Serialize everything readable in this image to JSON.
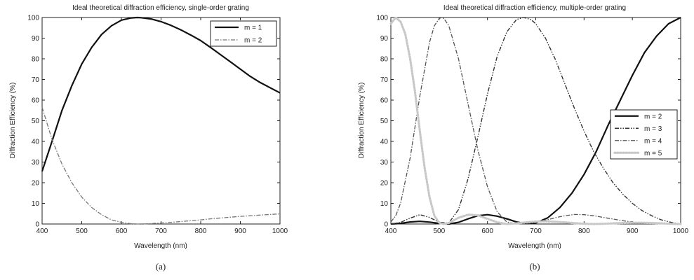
{
  "chart_data": [
    {
      "type": "line",
      "title": "Ideal theoretical diffraction efficiency, single-order grating",
      "xlabel": "Wavelength (nm)",
      "ylabel": "Diffraction Efficiency (%)",
      "xlim": [
        400,
        1000
      ],
      "ylim": [
        0,
        100
      ],
      "xticks": [
        400,
        500,
        600,
        700,
        800,
        900,
        1000
      ],
      "yticks": [
        0,
        10,
        20,
        30,
        40,
        50,
        60,
        70,
        80,
        90,
        100
      ],
      "grid": false,
      "legend_position": "top-right",
      "caption": "(a)",
      "series": [
        {
          "name": "m = 1",
          "color": "#111111",
          "style": "solid",
          "x": [
            400,
            425,
            450,
            475,
            500,
            525,
            550,
            575,
            600,
            625,
            640,
            650,
            675,
            700,
            725,
            750,
            775,
            800,
            825,
            850,
            875,
            900,
            925,
            950,
            975,
            1000
          ],
          "y": [
            25.5,
            40,
            55,
            67,
            77.5,
            85.5,
            91.8,
            96,
            98.7,
            99.8,
            100,
            99.9,
            99.3,
            98,
            96.2,
            94,
            91.5,
            88.8,
            85.5,
            82,
            78.5,
            75,
            71.5,
            68.5,
            66,
            63.5
          ]
        },
        {
          "name": "m = 2",
          "color": "#777777",
          "style": "dash-dot",
          "x": [
            400,
            425,
            450,
            475,
            500,
            525,
            550,
            575,
            600,
            625,
            640,
            650,
            675,
            700,
            725,
            750,
            775,
            800,
            825,
            850,
            875,
            900,
            925,
            950,
            975,
            1000
          ],
          "y": [
            56.5,
            41,
            29,
            20,
            13,
            8,
            4.5,
            2,
            0.8,
            0.1,
            0,
            0,
            0.2,
            0.5,
            0.8,
            1.2,
            1.6,
            2,
            2.5,
            2.9,
            3.3,
            3.7,
            4,
            4.3,
            4.6,
            4.9
          ]
        }
      ]
    },
    {
      "type": "line",
      "title": "Ideal theoretical diffraction efficiency, multiple-order grating",
      "xlabel": "Wavelength (nm)",
      "ylabel": "Diffraction Efficiency (%)",
      "xlim": [
        400,
        1000
      ],
      "ylim": [
        0,
        100
      ],
      "xticks": [
        400,
        500,
        600,
        700,
        800,
        900,
        1000
      ],
      "yticks": [
        0,
        10,
        20,
        30,
        40,
        50,
        60,
        70,
        80,
        90,
        100
      ],
      "grid": false,
      "legend_position": "center-right",
      "caption": "(b)",
      "series": [
        {
          "name": "m = 2",
          "color": "#111111",
          "style": "solid",
          "x": [
            400,
            420,
            440,
            460,
            480,
            500,
            520,
            540,
            560,
            580,
            600,
            620,
            640,
            660,
            680,
            700,
            725,
            750,
            775,
            800,
            825,
            850,
            875,
            900,
            925,
            950,
            975,
            1000
          ],
          "y": [
            0,
            0.3,
            1,
            1.3,
            0.9,
            0.3,
            0,
            0.8,
            2.5,
            4,
            4.5,
            3.8,
            2.5,
            1,
            0.2,
            0.5,
            3,
            8,
            15,
            24,
            35,
            48,
            60,
            72,
            83,
            91,
            97,
            100
          ]
        },
        {
          "name": "m = 3",
          "color": "#333333",
          "style": "dash-dot-dot",
          "x": [
            400,
            420,
            440,
            460,
            480,
            500,
            520,
            540,
            560,
            580,
            600,
            620,
            640,
            660,
            675,
            690,
            700,
            720,
            740,
            760,
            780,
            800,
            820,
            840,
            860,
            880,
            900,
            920,
            940,
            960,
            980,
            1000
          ],
          "y": [
            0,
            0.8,
            2.8,
            4.5,
            3.2,
            0.8,
            0.5,
            7,
            22,
            42,
            63,
            81,
            93,
            99,
            100,
            99,
            97,
            90,
            80,
            68,
            56,
            45,
            35,
            27,
            20,
            14.5,
            10,
            6.5,
            4,
            2,
            0.8,
            0
          ]
        },
        {
          "name": "m = 4",
          "color": "#555555",
          "style": "dash-dot",
          "x": [
            400,
            410,
            420,
            440,
            460,
            480,
            490,
            500,
            505,
            510,
            520,
            540,
            560,
            580,
            600,
            620,
            640,
            660,
            680,
            700,
            720,
            740,
            760,
            780,
            800,
            820,
            840,
            860,
            880,
            900,
            920,
            940,
            960,
            980,
            1000
          ],
          "y": [
            1,
            4,
            10,
            32,
            62,
            88,
            96,
            99.5,
            100,
            99.5,
            96,
            80,
            58,
            36,
            18,
            6,
            1,
            0,
            0.2,
            0.8,
            1.8,
            3,
            4,
            4.6,
            4.5,
            4,
            3.2,
            2.4,
            1.6,
            1,
            0.5,
            0.2,
            0.1,
            0,
            0
          ]
        },
        {
          "name": "m = 5",
          "color": "#c8c8c8",
          "style": "dotted-thick",
          "x": [
            400,
            410,
            420,
            430,
            440,
            450,
            460,
            470,
            480,
            490,
            500,
            510,
            520,
            540,
            560,
            580,
            600,
            620,
            640,
            660,
            680,
            700,
            720,
            740,
            760,
            780,
            800,
            820,
            840,
            860,
            880,
            900,
            920,
            940,
            960,
            980,
            1000
          ],
          "y": [
            97,
            100,
            98,
            92,
            80,
            64,
            45,
            27,
            13,
            4,
            0.5,
            0,
            0.5,
            3,
            4.5,
            4.2,
            2.5,
            0.8,
            0,
            0.3,
            0.8,
            1.2,
            1.3,
            1.1,
            0.8,
            0.4,
            0.1,
            0,
            0.1,
            0.3,
            0.5,
            0.6,
            0.6,
            0.5,
            0.3,
            0.1,
            0
          ]
        }
      ]
    }
  ]
}
